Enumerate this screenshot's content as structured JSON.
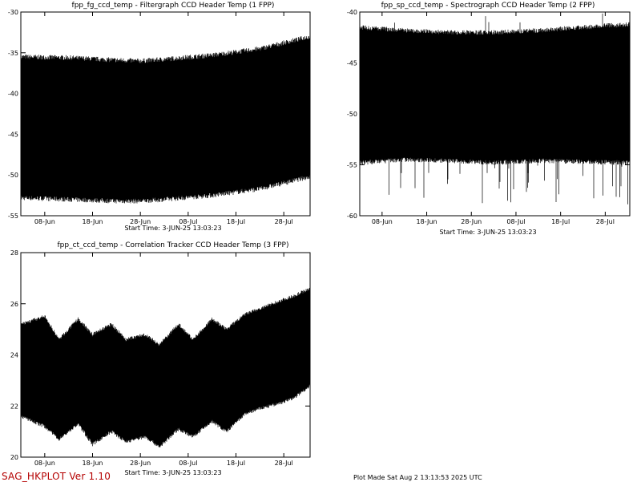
{
  "footer": {
    "program": "SAG_HKPLOT  Ver 1.10",
    "plot_made": "Plot Made Sat Aug  2 13:13:53 2025 UTC"
  },
  "chart_data": [
    {
      "type": "line",
      "title": "fpp_fg_ccd_temp - Filtergraph CCD Header Temp (1 FPP)",
      "start_time": "Start Time:  3-JUN-25  13:03:23",
      "x_tick_labels": [
        "08-Jun",
        "18-Jun",
        "28-Jun",
        "08-Jul",
        "18-Jul",
        "28-Jul"
      ],
      "x_tick_days": [
        5,
        15,
        25,
        35,
        45,
        55
      ],
      "xlim_days": [
        0,
        60.5
      ],
      "ylim": [
        -55,
        -30
      ],
      "y_ticks": [
        -55,
        -50,
        -45,
        -40,
        -35,
        -30
      ],
      "envelope": {
        "x_days": [
          0,
          10,
          20,
          25,
          30,
          40,
          50,
          60.5
        ],
        "upper": [
          -35.5,
          -35.6,
          -35.9,
          -36.0,
          -35.8,
          -35.3,
          -34.5,
          -33.0
        ],
        "lower": [
          -52.8,
          -53.0,
          -53.2,
          -53.2,
          -53.0,
          -52.5,
          -51.7,
          -50.2
        ]
      }
    },
    {
      "type": "line",
      "title": "fpp_sp_ccd_temp - Spectrograph CCD Header Temp (2 FPP)",
      "start_time": "Start Time:  3-JUN-25  13:03:23",
      "x_tick_labels": [
        "08-Jun",
        "18-Jun",
        "28-Jun",
        "08-Jul",
        "18-Jul",
        "28-Jul"
      ],
      "x_tick_days": [
        5,
        15,
        25,
        35,
        45,
        55
      ],
      "xlim_days": [
        0,
        60.5
      ],
      "ylim": [
        -60,
        -40
      ],
      "y_ticks": [
        -60,
        -55,
        -50,
        -45,
        -40
      ],
      "envelope": {
        "x_days": [
          0,
          10,
          20,
          30,
          40,
          50,
          60.5
        ],
        "upper": [
          -41.5,
          -41.8,
          -42.0,
          -42.0,
          -41.8,
          -41.5,
          -41.2
        ],
        "lower": [
          -54.8,
          -54.5,
          -54.6,
          -54.8,
          -54.6,
          -54.7,
          -54.8
        ]
      }
    },
    {
      "type": "line",
      "title": "fpp_ct_ccd_temp - Correlation Tracker CCD Header Temp (3 FPP)",
      "start_time": "Start Time:  3-JUN-25  13:03:23",
      "x_tick_labels": [
        "08-Jun",
        "18-Jun",
        "28-Jun",
        "08-Jul",
        "18-Jul",
        "28-Jul"
      ],
      "x_tick_days": [
        5,
        15,
        25,
        35,
        45,
        55
      ],
      "xlim_days": [
        0,
        60.5
      ],
      "ylim": [
        20,
        28
      ],
      "y_ticks": [
        20,
        22,
        24,
        26,
        28
      ],
      "envelope": {
        "x_days": [
          0,
          5,
          8,
          12,
          15,
          19,
          22,
          26,
          29,
          33,
          36,
          40,
          43,
          47,
          50,
          54,
          57,
          60.5
        ],
        "upper": [
          25.2,
          25.5,
          24.6,
          25.4,
          24.8,
          25.2,
          24.6,
          24.8,
          24.4,
          25.2,
          24.6,
          25.4,
          25.0,
          25.6,
          25.8,
          26.1,
          26.3,
          26.6
        ],
        "lower": [
          21.6,
          21.2,
          20.7,
          21.3,
          20.5,
          21.0,
          20.6,
          20.8,
          20.4,
          21.1,
          20.8,
          21.4,
          21.0,
          21.7,
          21.9,
          22.1,
          22.3,
          22.8
        ]
      }
    }
  ]
}
